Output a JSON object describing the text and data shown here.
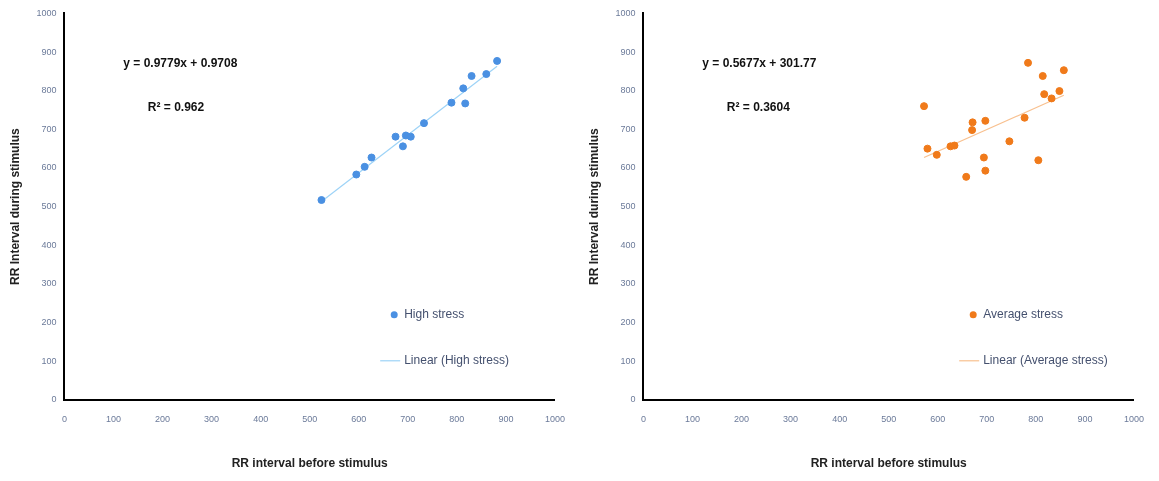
{
  "chart_data": [
    {
      "type": "scatter",
      "xlabel": "RR interval before stimulus",
      "ylabel": "RR Interval during stimulus",
      "xlim": [
        0,
        1000
      ],
      "ylim": [
        0,
        1000
      ],
      "xticks": [
        0,
        100,
        200,
        300,
        400,
        500,
        600,
        700,
        800,
        900,
        1000
      ],
      "yticks": [
        0,
        100,
        200,
        300,
        400,
        500,
        600,
        700,
        800,
        900,
        1000
      ],
      "grid": false,
      "legend": "bottom right",
      "annotations": [
        "y = 0.9779x + 0.9708",
        "R² = 0.962"
      ],
      "series": [
        {
          "name": "High stress",
          "marker": "circle",
          "color": "#4a90e2",
          "x": [
            524,
            595,
            612,
            626,
            675,
            690,
            696,
            706,
            733,
            789,
            813,
            817,
            830,
            860,
            882
          ],
          "values": [
            517,
            583,
            603,
            627,
            681,
            656,
            684,
            681,
            716,
            769,
            806,
            767,
            838,
            843,
            877
          ]
        },
        {
          "name": "Linear (High stress)",
          "type": "line",
          "color": "#9dd3f7",
          "x": [
            524,
            882
          ],
          "values": [
            513,
            863
          ]
        }
      ]
    },
    {
      "type": "scatter",
      "xlabel": "RR interval before stimulus",
      "ylabel": "RR Interval during stimulus",
      "xlim": [
        0,
        1000
      ],
      "ylim": [
        0,
        1000
      ],
      "xticks": [
        0,
        100,
        200,
        300,
        400,
        500,
        600,
        700,
        800,
        900,
        1000
      ],
      "yticks": [
        0,
        100,
        200,
        300,
        400,
        500,
        600,
        700,
        800,
        900,
        1000
      ],
      "grid": false,
      "legend": "bottom right",
      "annotations": [
        "y = 0.5677x + 301.77",
        "R² = 0.3604"
      ],
      "series": [
        {
          "name": "Average stress",
          "marker": "circle",
          "color": "#f07a1a",
          "x": [
            572,
            579,
            598,
            626,
            634,
            658,
            670,
            671,
            694,
            697,
            697,
            746,
            777,
            784,
            805,
            814,
            817,
            832,
            848,
            857
          ],
          "values": [
            760,
            650,
            634,
            656,
            658,
            577,
            698,
            718,
            627,
            593,
            722,
            669,
            730,
            872,
            620,
            838,
            791,
            780,
            799,
            853
          ]
        },
        {
          "name": "Linear (Average stress)",
          "type": "line",
          "color": "#f8c08f",
          "x": [
            572,
            857
          ],
          "values": [
            627,
            788
          ]
        }
      ]
    }
  ]
}
